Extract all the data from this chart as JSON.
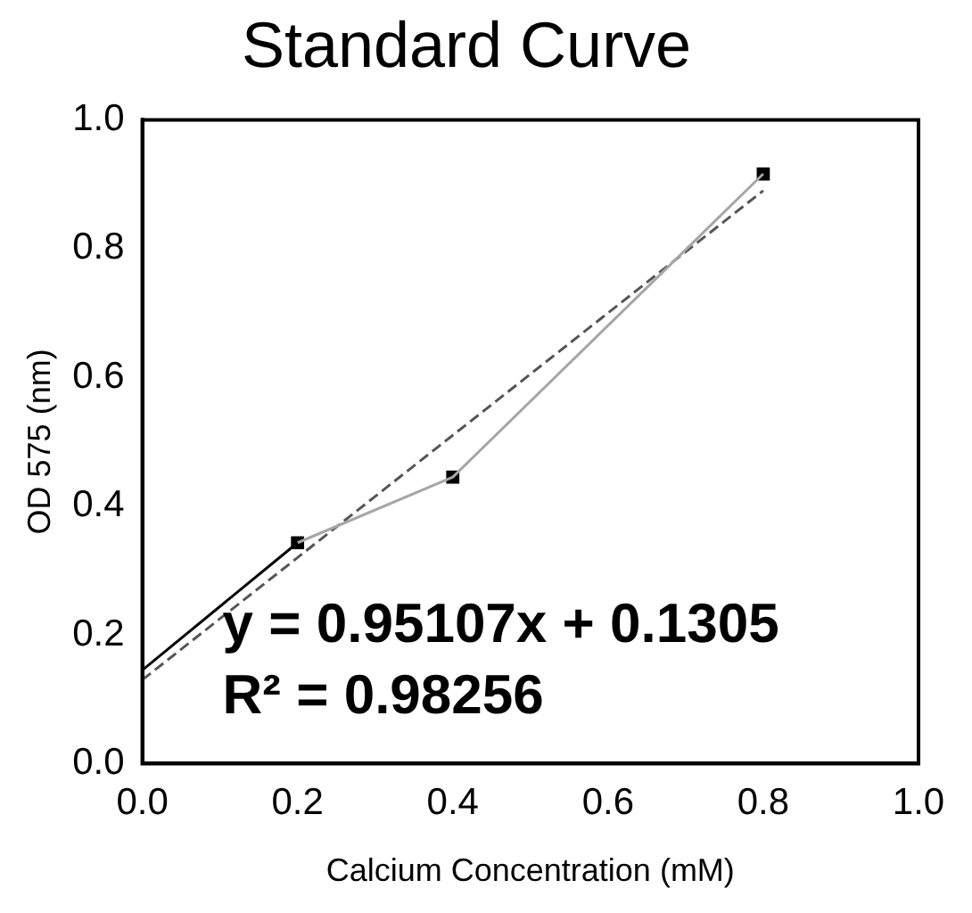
{
  "chart_data": {
    "type": "line",
    "title": "Standard Curve",
    "xlabel": "Calcium Concentration (mM)",
    "ylabel": "OD 575 (nm)",
    "xlim": [
      0,
      1
    ],
    "xticks": [
      {
        "value": 0,
        "label": "0.0"
      },
      0.2,
      0.4,
      0.6,
      0.8,
      {
        "value": 1,
        "label": "1.0"
      }
    ],
    "ylim": [
      0,
      1
    ],
    "yticks": [
      {
        "value": 0,
        "label": "0.0"
      },
      0.2,
      0.4,
      0.6,
      0.8,
      {
        "value": 1,
        "label": "1.0"
      }
    ],
    "grid": false,
    "legend": false,
    "series": [
      {
        "type": "line",
        "color": "#000000",
        "x": [
          0,
          0.2
        ],
        "values": [
          0.145,
          0.343
        ],
        "marker": "none",
        "line_style": "solid"
      },
      {
        "type": "line",
        "color": "#a6a6a6",
        "x": [
          0.2,
          0.4,
          0.8
        ],
        "values": [
          0.343,
          0.445,
          0.916
        ],
        "marker": "none",
        "line_style": "solid"
      },
      {
        "type": "scatter",
        "color": "#000000",
        "x": [
          0.2,
          0.4,
          0.8
        ],
        "values": [
          0.343,
          0.445,
          0.916
        ],
        "marker": "square"
      },
      {
        "type": "line",
        "color": "#555555",
        "x": [
          0,
          0.8
        ],
        "values": [
          0.13,
          0.89
        ],
        "marker": "none",
        "line_style": "dashed"
      }
    ],
    "annotations": [
      "y = 0.95107x + 0.1305",
      "R² = 0.98256"
    ]
  }
}
